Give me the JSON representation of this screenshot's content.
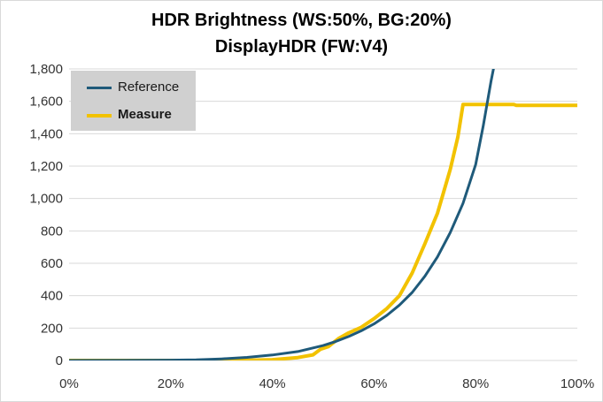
{
  "chart": {
    "title_line1": "HDR Brightness (WS:50%, BG:20%)",
    "title_line2": "DisplayHDR (FW:V4)"
  },
  "legend": {
    "items": [
      {
        "label": "Reference",
        "color": "#1f5a7a"
      },
      {
        "label": "Measure",
        "color": "#f2c200"
      }
    ],
    "placement": "top-left",
    "background": "#d0d0d0"
  },
  "chart_data": {
    "type": "line",
    "title": "HDR Brightness (WS:50%, BG:20%) DisplayHDR (FW:V4)",
    "xlim": [
      0,
      100
    ],
    "ylim": [
      0,
      1800
    ],
    "x_ticks": [
      0,
      20,
      40,
      60,
      80,
      100
    ],
    "x_tick_labels": [
      "0%",
      "20%",
      "40%",
      "60%",
      "80%",
      "100%"
    ],
    "y_ticks": [
      0,
      200,
      400,
      600,
      800,
      1000,
      1200,
      1400,
      1600,
      1800
    ],
    "y_tick_labels": [
      "0",
      "200",
      "400",
      "600",
      "800",
      "1,000",
      "1,200",
      "1,400",
      "1,600",
      "1,800"
    ],
    "grid": "horizontal",
    "series": [
      {
        "name": "Reference",
        "color": "#1f5a7a",
        "points": [
          [
            0,
            0
          ],
          [
            10,
            0.3
          ],
          [
            20,
            2
          ],
          [
            25,
            4
          ],
          [
            30,
            10
          ],
          [
            35,
            19
          ],
          [
            40,
            34
          ],
          [
            45,
            55
          ],
          [
            50,
            92
          ],
          [
            52.5,
            118
          ],
          [
            55,
            148
          ],
          [
            57.5,
            183
          ],
          [
            60,
            226
          ],
          [
            62.5,
            278
          ],
          [
            65,
            342
          ],
          [
            67.5,
            420
          ],
          [
            70,
            520
          ],
          [
            72.5,
            640
          ],
          [
            75,
            790
          ],
          [
            77.5,
            970
          ],
          [
            80,
            1210
          ],
          [
            81.5,
            1450
          ],
          [
            83,
            1720
          ],
          [
            83.5,
            1800
          ]
        ]
      },
      {
        "name": "Measure",
        "color": "#f2c200",
        "points": [
          [
            0,
            0
          ],
          [
            27,
            0
          ],
          [
            35,
            1
          ],
          [
            40,
            5
          ],
          [
            45,
            18
          ],
          [
            48,
            35
          ],
          [
            49.5,
            70
          ],
          [
            51,
            85
          ],
          [
            52,
            110
          ],
          [
            53,
            135
          ],
          [
            55,
            170
          ],
          [
            57.5,
            205
          ],
          [
            60,
            258
          ],
          [
            62.5,
            320
          ],
          [
            65,
            400
          ],
          [
            67.5,
            540
          ],
          [
            70,
            720
          ],
          [
            72.5,
            910
          ],
          [
            75,
            1180
          ],
          [
            76.5,
            1380
          ],
          [
            77.5,
            1580
          ],
          [
            80,
            1580
          ],
          [
            87.5,
            1580
          ],
          [
            88,
            1575
          ],
          [
            100,
            1575
          ]
        ]
      }
    ]
  }
}
